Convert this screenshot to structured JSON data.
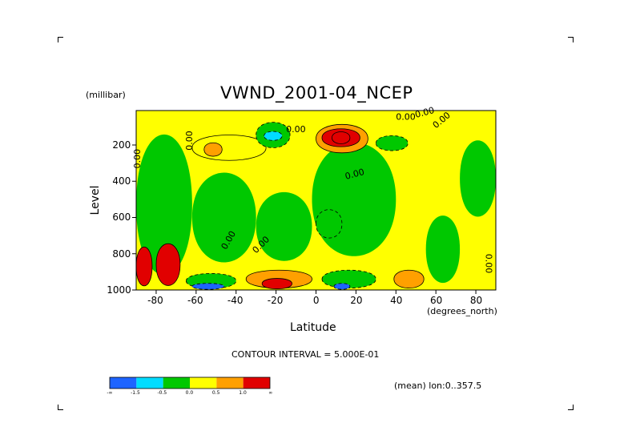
{
  "chart_data": {
    "type": "heatmap",
    "title": "VWND_2001-04_NCEP",
    "xlabel": "Latitude",
    "ylabel": "Level",
    "x_unit": "(degrees_north)",
    "y_unit": "(millibar)",
    "xlim": [
      -90,
      90
    ],
    "ylim": [
      1000,
      10
    ],
    "x_ticks": [
      "-80",
      "-60",
      "-40",
      "-20",
      "0",
      "20",
      "40",
      "60",
      "80"
    ],
    "x_tick_values": [
      -80,
      -60,
      -40,
      -20,
      0,
      20,
      40,
      60,
      80
    ],
    "y_ticks": [
      "200",
      "400",
      "600",
      "800",
      "1000"
    ],
    "y_tick_values": [
      200,
      400,
      600,
      800,
      1000
    ],
    "contour_interval_text": "CONTOUR INTERVAL = 5.000E-01",
    "mean_text": "(mean) lon:0..357.5",
    "contour_labels": [
      "0.00",
      "0.00",
      "0.00",
      "0.00",
      "0.00",
      "0.00",
      "0.00",
      "0.00",
      "0.00",
      "0.00"
    ],
    "colorbar": {
      "colors": [
        "#1e64ff",
        "#00dcff",
        "#00c800",
        "#ffff00",
        "#ffa000",
        "#e10000"
      ],
      "tick_labels": [
        "-∞",
        "-1.5",
        "-0.5",
        "0.0",
        "0.5",
        "1.0",
        "∞"
      ]
    },
    "regions": [
      {
        "level": 0.25,
        "lat": [
          -62,
          -25
        ],
        "p": [
          130,
          300
        ],
        "desc": "yellow"
      },
      {
        "level": 0.75,
        "lat": [
          -56,
          -47
        ],
        "p": [
          180,
          270
        ]
      },
      {
        "level": -0.25,
        "lat": [
          -30,
          -13
        ],
        "p": [
          60,
          230
        ]
      },
      {
        "level": -0.75,
        "lat": [
          -26,
          -17
        ],
        "p": [
          120,
          180
        ]
      },
      {
        "level": 0.75,
        "lat": [
          0,
          26
        ],
        "p": [
          70,
          260
        ]
      },
      {
        "level": 1.25,
        "lat": [
          3,
          22
        ],
        "p": [
          100,
          220
        ]
      },
      {
        "level": 1.75,
        "lat": [
          8,
          17
        ],
        "p": [
          120,
          200
        ]
      },
      {
        "level": -0.25,
        "lat": [
          30,
          46
        ],
        "p": [
          140,
          240
        ]
      },
      {
        "level": -0.25,
        "lat": [
          0,
          13
        ],
        "p": [
          540,
          730
        ]
      },
      {
        "level": -0.25,
        "lat": [
          -65,
          -40
        ],
        "p": [
          900,
          1000
        ]
      },
      {
        "level": -1.75,
        "lat": [
          -62,
          -46
        ],
        "p": [
          960,
          1000
        ]
      },
      {
        "level": 0.75,
        "lat": [
          -35,
          -2
        ],
        "p": [
          880,
          1000
        ]
      },
      {
        "level": 1.75,
        "lat": [
          -27,
          -12
        ],
        "p": [
          930,
          1000
        ]
      },
      {
        "level": -0.25,
        "lat": [
          3,
          30
        ],
        "p": [
          880,
          1000
        ]
      },
      {
        "level": -1.75,
        "lat": [
          9,
          17
        ],
        "p": [
          960,
          1000
        ]
      },
      {
        "level": 0.75,
        "lat": [
          39,
          54
        ],
        "p": [
          880,
          1000
        ]
      },
      {
        "level": 1.75,
        "lat": [
          -90,
          -82
        ],
        "p": [
          740,
          1000
        ]
      },
      {
        "level": 1.75,
        "lat": [
          -80,
          -68
        ],
        "p": [
          720,
          1000
        ]
      }
    ]
  }
}
